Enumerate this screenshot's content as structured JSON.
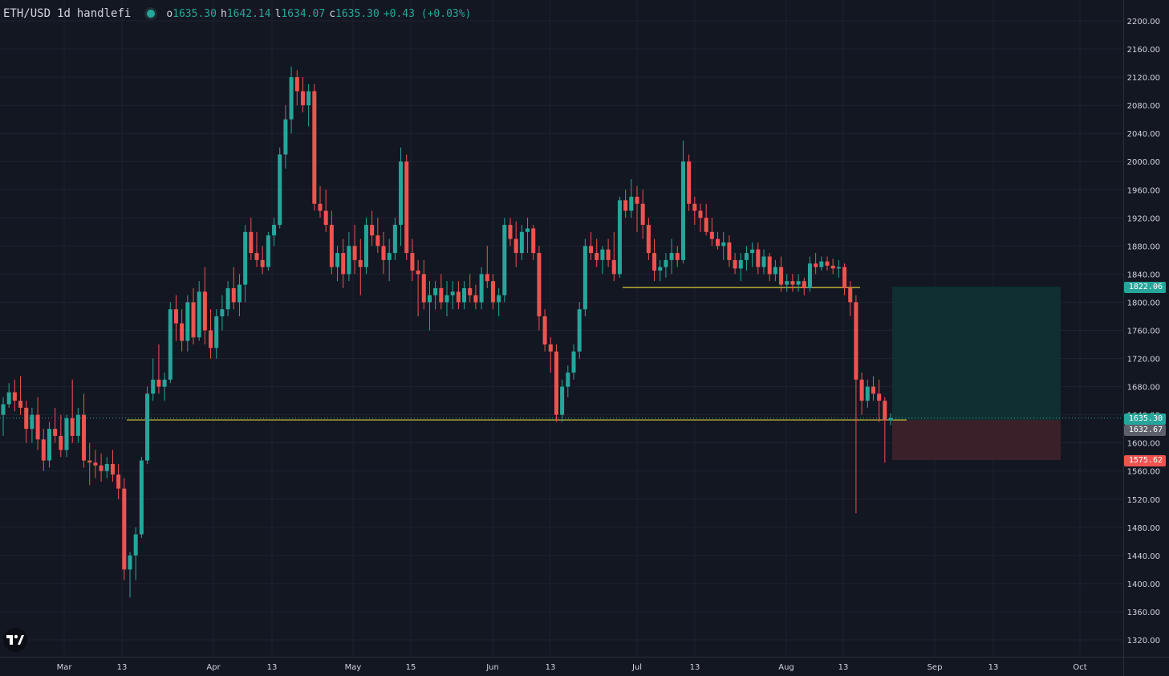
{
  "header": {
    "symbol": "ETH/USD",
    "interval": "1d",
    "author": "handlefi",
    "ohlc": {
      "o_label": "o",
      "o": "1635.30",
      "h_label": "h",
      "h": "1642.14",
      "l_label": "l",
      "l": "1634.07",
      "c_label": "c",
      "c": "1635.30",
      "change": "+0.43 (+0.03%)"
    }
  },
  "colors": {
    "background": "#131722",
    "up": "#26a69a",
    "down": "#ef5350",
    "grid": "#1e2230",
    "axis_text": "#d1d4dc",
    "support_line": "#d4c83a",
    "profit_zone": "#0f2f33",
    "loss_zone": "#3a2129"
  },
  "axis_labels": {
    "price_ticks": [
      "2200.00",
      "2160.00",
      "2120.00",
      "2080.00",
      "2040.00",
      "2000.00",
      "1960.00",
      "1920.00",
      "1880.00",
      "1840.00",
      "1800.00",
      "1760.00",
      "1720.00",
      "1680.00",
      "1640.00",
      "1600.00",
      "1560.00",
      "1520.00",
      "1480.00",
      "1440.00",
      "1400.00",
      "1360.00",
      "1320.00"
    ],
    "time_ticks": [
      "Mar",
      "13",
      "Apr",
      "13",
      "May",
      "15",
      "Jun",
      "13",
      "Jul",
      "13",
      "Aug",
      "13",
      "Sep",
      "13",
      "Oct"
    ],
    "badges": {
      "target": "1822.06",
      "current": "1635.30",
      "entry": "1632.67",
      "stop": "1575.62"
    }
  },
  "chart_data": {
    "type": "candlestick",
    "symbol": "ETH/USD",
    "interval": "1d",
    "y_axis": {
      "min": 1300,
      "max": 2220,
      "ticks": [
        2200,
        2160,
        2120,
        2080,
        2040,
        2000,
        1960,
        1920,
        1880,
        1840,
        1800,
        1760,
        1720,
        1680,
        1640,
        1600,
        1560,
        1520,
        1480,
        1440,
        1400,
        1360,
        1320
      ]
    },
    "x_axis": {
      "ticks": [
        "Mar",
        "13",
        "Apr",
        "13",
        "May",
        "15",
        "Jun",
        "13",
        "Jul",
        "13",
        "Aug",
        "13",
        "Sep",
        "13",
        "Oct"
      ]
    },
    "last_price": 1635.3,
    "candles": [
      [
        1640,
        1665,
        1610,
        1655
      ],
      [
        1655,
        1685,
        1650,
        1672
      ],
      [
        1672,
        1690,
        1645,
        1660
      ],
      [
        1660,
        1695,
        1640,
        1650
      ],
      [
        1650,
        1660,
        1600,
        1620
      ],
      [
        1620,
        1650,
        1600,
        1640
      ],
      [
        1640,
        1665,
        1590,
        1605
      ],
      [
        1605,
        1620,
        1560,
        1575
      ],
      [
        1575,
        1630,
        1565,
        1620
      ],
      [
        1620,
        1650,
        1600,
        1610
      ],
      [
        1610,
        1640,
        1580,
        1590
      ],
      [
        1590,
        1640,
        1580,
        1635
      ],
      [
        1635,
        1690,
        1600,
        1610
      ],
      [
        1610,
        1650,
        1600,
        1640
      ],
      [
        1640,
        1670,
        1565,
        1575
      ],
      [
        1575,
        1600,
        1540,
        1572
      ],
      [
        1572,
        1590,
        1550,
        1568
      ],
      [
        1568,
        1585,
        1545,
        1560
      ],
      [
        1560,
        1580,
        1550,
        1570
      ],
      [
        1570,
        1590,
        1545,
        1555
      ],
      [
        1555,
        1570,
        1520,
        1535
      ],
      [
        1535,
        1550,
        1405,
        1420
      ],
      [
        1420,
        1445,
        1380,
        1440
      ],
      [
        1440,
        1480,
        1405,
        1470
      ],
      [
        1470,
        1580,
        1465,
        1575
      ],
      [
        1575,
        1680,
        1570,
        1670
      ],
      [
        1670,
        1720,
        1660,
        1690
      ],
      [
        1690,
        1740,
        1670,
        1680
      ],
      [
        1680,
        1700,
        1660,
        1690
      ],
      [
        1690,
        1800,
        1685,
        1790
      ],
      [
        1790,
        1810,
        1745,
        1770
      ],
      [
        1770,
        1790,
        1730,
        1745
      ],
      [
        1745,
        1810,
        1730,
        1800
      ],
      [
        1800,
        1820,
        1740,
        1750
      ],
      [
        1750,
        1830,
        1745,
        1815
      ],
      [
        1815,
        1850,
        1740,
        1760
      ],
      [
        1760,
        1790,
        1720,
        1735
      ],
      [
        1735,
        1790,
        1720,
        1780
      ],
      [
        1780,
        1810,
        1760,
        1790
      ],
      [
        1790,
        1830,
        1780,
        1820
      ],
      [
        1820,
        1850,
        1790,
        1800
      ],
      [
        1800,
        1840,
        1780,
        1825
      ],
      [
        1825,
        1910,
        1800,
        1900
      ],
      [
        1900,
        1920,
        1860,
        1870
      ],
      [
        1870,
        1900,
        1850,
        1860
      ],
      [
        1860,
        1880,
        1840,
        1850
      ],
      [
        1850,
        1900,
        1845,
        1895
      ],
      [
        1895,
        1920,
        1880,
        1910
      ],
      [
        1910,
        2020,
        1905,
        2010
      ],
      [
        2010,
        2080,
        1990,
        2060
      ],
      [
        2060,
        2135,
        2040,
        2120
      ],
      [
        2120,
        2130,
        2080,
        2100
      ],
      [
        2100,
        2120,
        2070,
        2080
      ],
      [
        2080,
        2110,
        2050,
        2100
      ],
      [
        2100,
        2110,
        1930,
        1940
      ],
      [
        1940,
        1965,
        1920,
        1930
      ],
      [
        1930,
        1960,
        1900,
        1910
      ],
      [
        1910,
        1930,
        1840,
        1850
      ],
      [
        1850,
        1880,
        1830,
        1870
      ],
      [
        1870,
        1890,
        1820,
        1840
      ],
      [
        1840,
        1900,
        1830,
        1880
      ],
      [
        1880,
        1910,
        1840,
        1860
      ],
      [
        1860,
        1890,
        1810,
        1850
      ],
      [
        1850,
        1920,
        1840,
        1910
      ],
      [
        1910,
        1930,
        1880,
        1895
      ],
      [
        1895,
        1920,
        1870,
        1880
      ],
      [
        1880,
        1900,
        1840,
        1860
      ],
      [
        1860,
        1890,
        1830,
        1870
      ],
      [
        1870,
        1920,
        1860,
        1910
      ],
      [
        1910,
        2020,
        1880,
        2000
      ],
      [
        2000,
        2010,
        1860,
        1870
      ],
      [
        1870,
        1890,
        1830,
        1845
      ],
      [
        1845,
        1860,
        1780,
        1840
      ],
      [
        1840,
        1860,
        1790,
        1800
      ],
      [
        1800,
        1830,
        1760,
        1810
      ],
      [
        1810,
        1830,
        1790,
        1820
      ],
      [
        1820,
        1840,
        1790,
        1800
      ],
      [
        1800,
        1830,
        1780,
        1810
      ],
      [
        1810,
        1830,
        1790,
        1815
      ],
      [
        1815,
        1830,
        1790,
        1800
      ],
      [
        1800,
        1830,
        1790,
        1820
      ],
      [
        1820,
        1840,
        1800,
        1810
      ],
      [
        1810,
        1825,
        1790,
        1800
      ],
      [
        1800,
        1850,
        1790,
        1840
      ],
      [
        1840,
        1880,
        1820,
        1830
      ],
      [
        1830,
        1840,
        1790,
        1800
      ],
      [
        1800,
        1820,
        1780,
        1810
      ],
      [
        1810,
        1920,
        1800,
        1910
      ],
      [
        1910,
        1920,
        1880,
        1890
      ],
      [
        1890,
        1915,
        1850,
        1870
      ],
      [
        1870,
        1910,
        1860,
        1900
      ],
      [
        1900,
        1920,
        1870,
        1905
      ],
      [
        1905,
        1910,
        1860,
        1870
      ],
      [
        1870,
        1880,
        1760,
        1780
      ],
      [
        1780,
        1790,
        1730,
        1740
      ],
      [
        1740,
        1750,
        1700,
        1730
      ],
      [
        1730,
        1740,
        1630,
        1640
      ],
      [
        1640,
        1690,
        1630,
        1680
      ],
      [
        1680,
        1710,
        1665,
        1700
      ],
      [
        1700,
        1740,
        1690,
        1730
      ],
      [
        1730,
        1800,
        1720,
        1790
      ],
      [
        1790,
        1890,
        1780,
        1880
      ],
      [
        1880,
        1900,
        1860,
        1870
      ],
      [
        1870,
        1890,
        1850,
        1860
      ],
      [
        1860,
        1880,
        1840,
        1875
      ],
      [
        1875,
        1890,
        1850,
        1860
      ],
      [
        1860,
        1900,
        1830,
        1840
      ],
      [
        1840,
        1950,
        1835,
        1945
      ],
      [
        1945,
        1960,
        1920,
        1930
      ],
      [
        1930,
        1975,
        1920,
        1950
      ],
      [
        1950,
        1965,
        1900,
        1940
      ],
      [
        1940,
        1960,
        1890,
        1910
      ],
      [
        1910,
        1920,
        1860,
        1870
      ],
      [
        1870,
        1890,
        1830,
        1845
      ],
      [
        1845,
        1860,
        1830,
        1850
      ],
      [
        1850,
        1870,
        1835,
        1860
      ],
      [
        1860,
        1890,
        1840,
        1870
      ],
      [
        1870,
        1880,
        1850,
        1860
      ],
      [
        1860,
        2030,
        1855,
        2000
      ],
      [
        2000,
        2010,
        1930,
        1940
      ],
      [
        1940,
        1950,
        1910,
        1930
      ],
      [
        1930,
        1940,
        1900,
        1920
      ],
      [
        1920,
        1940,
        1895,
        1900
      ],
      [
        1900,
        1920,
        1880,
        1890
      ],
      [
        1890,
        1900,
        1875,
        1880
      ],
      [
        1880,
        1900,
        1860,
        1885
      ],
      [
        1885,
        1895,
        1850,
        1860
      ],
      [
        1860,
        1870,
        1840,
        1848
      ],
      [
        1848,
        1870,
        1830,
        1860
      ],
      [
        1860,
        1880,
        1845,
        1870
      ],
      [
        1870,
        1885,
        1850,
        1875
      ],
      [
        1875,
        1885,
        1840,
        1850
      ],
      [
        1850,
        1875,
        1840,
        1865
      ],
      [
        1865,
        1870,
        1830,
        1840
      ],
      [
        1840,
        1860,
        1830,
        1850
      ],
      [
        1850,
        1865,
        1815,
        1825
      ],
      [
        1825,
        1840,
        1815,
        1830
      ],
      [
        1830,
        1840,
        1815,
        1825
      ],
      [
        1825,
        1840,
        1815,
        1830
      ],
      [
        1830,
        1835,
        1810,
        1820
      ],
      [
        1820,
        1865,
        1815,
        1855
      ],
      [
        1855,
        1870,
        1840,
        1850
      ],
      [
        1850,
        1865,
        1845,
        1858
      ],
      [
        1858,
        1865,
        1845,
        1852
      ],
      [
        1852,
        1862,
        1840,
        1848
      ],
      [
        1848,
        1860,
        1835,
        1850
      ],
      [
        1850,
        1855,
        1810,
        1820
      ],
      [
        1820,
        1830,
        1780,
        1800
      ],
      [
        1800,
        1810,
        1500,
        1690
      ],
      [
        1690,
        1700,
        1640,
        1660
      ],
      [
        1660,
        1690,
        1650,
        1680
      ],
      [
        1680,
        1695,
        1660,
        1670
      ],
      [
        1670,
        1690,
        1630,
        1660
      ],
      [
        1660,
        1665,
        1572,
        1632
      ],
      [
        1632,
        1642,
        1625,
        1635.3
      ]
    ],
    "horizontal_lines": [
      {
        "price": 1632.67,
        "label": "support"
      },
      {
        "price": 1822.06,
        "label": "resistance"
      }
    ],
    "long_position": {
      "entry": 1632.67,
      "target": 1822.06,
      "stop": 1575.62
    }
  }
}
